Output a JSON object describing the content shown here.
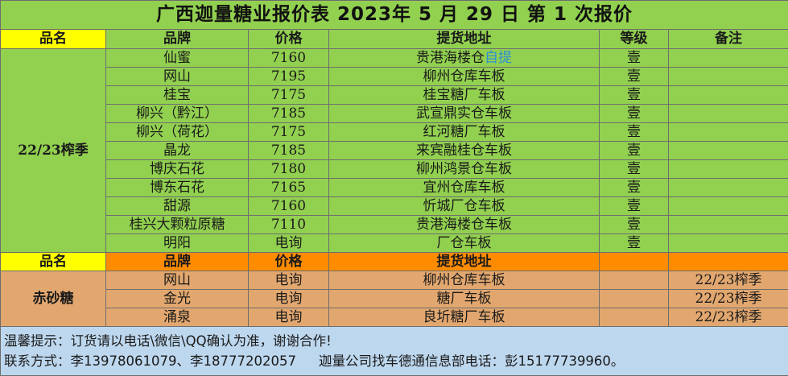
{
  "title": "广西迦量糖业报价表 2023年 5 月 29 日 第 1 次报价",
  "headers1": [
    "品名",
    "品牌",
    "价格",
    "提货地址",
    "等级",
    "备注"
  ],
  "section1": {
    "category": "22/23榨季",
    "rows": [
      {
        "brand": "仙蜜",
        "price": "7160",
        "address": "贵港海楼仓",
        "address_suffix": "自提",
        "grade": "壹",
        "note": ""
      },
      {
        "brand": "网山",
        "price": "7195",
        "address": "柳州仓库车板",
        "address_suffix": "",
        "grade": "壹",
        "note": ""
      },
      {
        "brand": "桂宝",
        "price": "7175",
        "address": "桂宝糖厂车板",
        "address_suffix": "",
        "grade": "壹",
        "note": ""
      },
      {
        "brand": "柳兴（黔江）",
        "price": "7185",
        "address": "武宣鼎实仓车板",
        "address_suffix": "",
        "grade": "壹",
        "note": ""
      },
      {
        "brand": "柳兴（荷花）",
        "price": "7175",
        "address": "红河糖厂车板",
        "address_suffix": "",
        "grade": "壹",
        "note": ""
      },
      {
        "brand": "晶龙",
        "price": "7185",
        "address": "来宾融桂仓车板",
        "address_suffix": "",
        "grade": "壹",
        "note": ""
      },
      {
        "brand": "博庆石花",
        "price": "7180",
        "address": "柳州鸿景仓车板",
        "address_suffix": "",
        "grade": "壹",
        "note": ""
      },
      {
        "brand": "博东石花",
        "price": "7165",
        "address": "宜州仓库车板",
        "address_suffix": "",
        "grade": "壹",
        "note": ""
      },
      {
        "brand": "甜源",
        "price": "7160",
        "address": "忻城厂仓车板",
        "address_suffix": "",
        "grade": "壹",
        "note": ""
      },
      {
        "brand": "桂兴大颗粒原糖",
        "price": "7110",
        "address": "贵港海楼仓车板",
        "address_suffix": "",
        "grade": "壹",
        "note": ""
      },
      {
        "brand": "明阳",
        "price": "电询",
        "address": "厂仓车板",
        "address_suffix": "",
        "grade": "壹",
        "note": ""
      }
    ]
  },
  "headers2": [
    "品名",
    "品牌",
    "价格",
    "提货地址",
    "",
    ""
  ],
  "section2": {
    "category": "赤砂糖",
    "rows": [
      {
        "brand": "网山",
        "price": "电询",
        "address": "柳州仓库车板",
        "grade": "",
        "note": "22/23榨季"
      },
      {
        "brand": "金光",
        "price": "电询",
        "address": "糖厂车板",
        "grade": "",
        "note": "22/23榨季"
      },
      {
        "brand": "涌泉",
        "price": "电询",
        "address": "良圻糖厂车板",
        "grade": "",
        "note": "22/23榨季"
      }
    ]
  },
  "footer": {
    "tip": "温馨提示：订货请以电话\\微信\\QQ确认为准，谢谢合作!",
    "contact": "联系方式：李13978061079、李18777202057",
    "dept": "迦量公司找车德通信息部电话：彭15177739960。"
  },
  "colors": {
    "green": "#92d050",
    "yellow": "#ffff00",
    "orange": "#ff8c00",
    "tan": "#e2a76f",
    "brown": "#bf8f00",
    "note_blue": "#bdd7ee",
    "link_blue": "#2f8fd6"
  }
}
